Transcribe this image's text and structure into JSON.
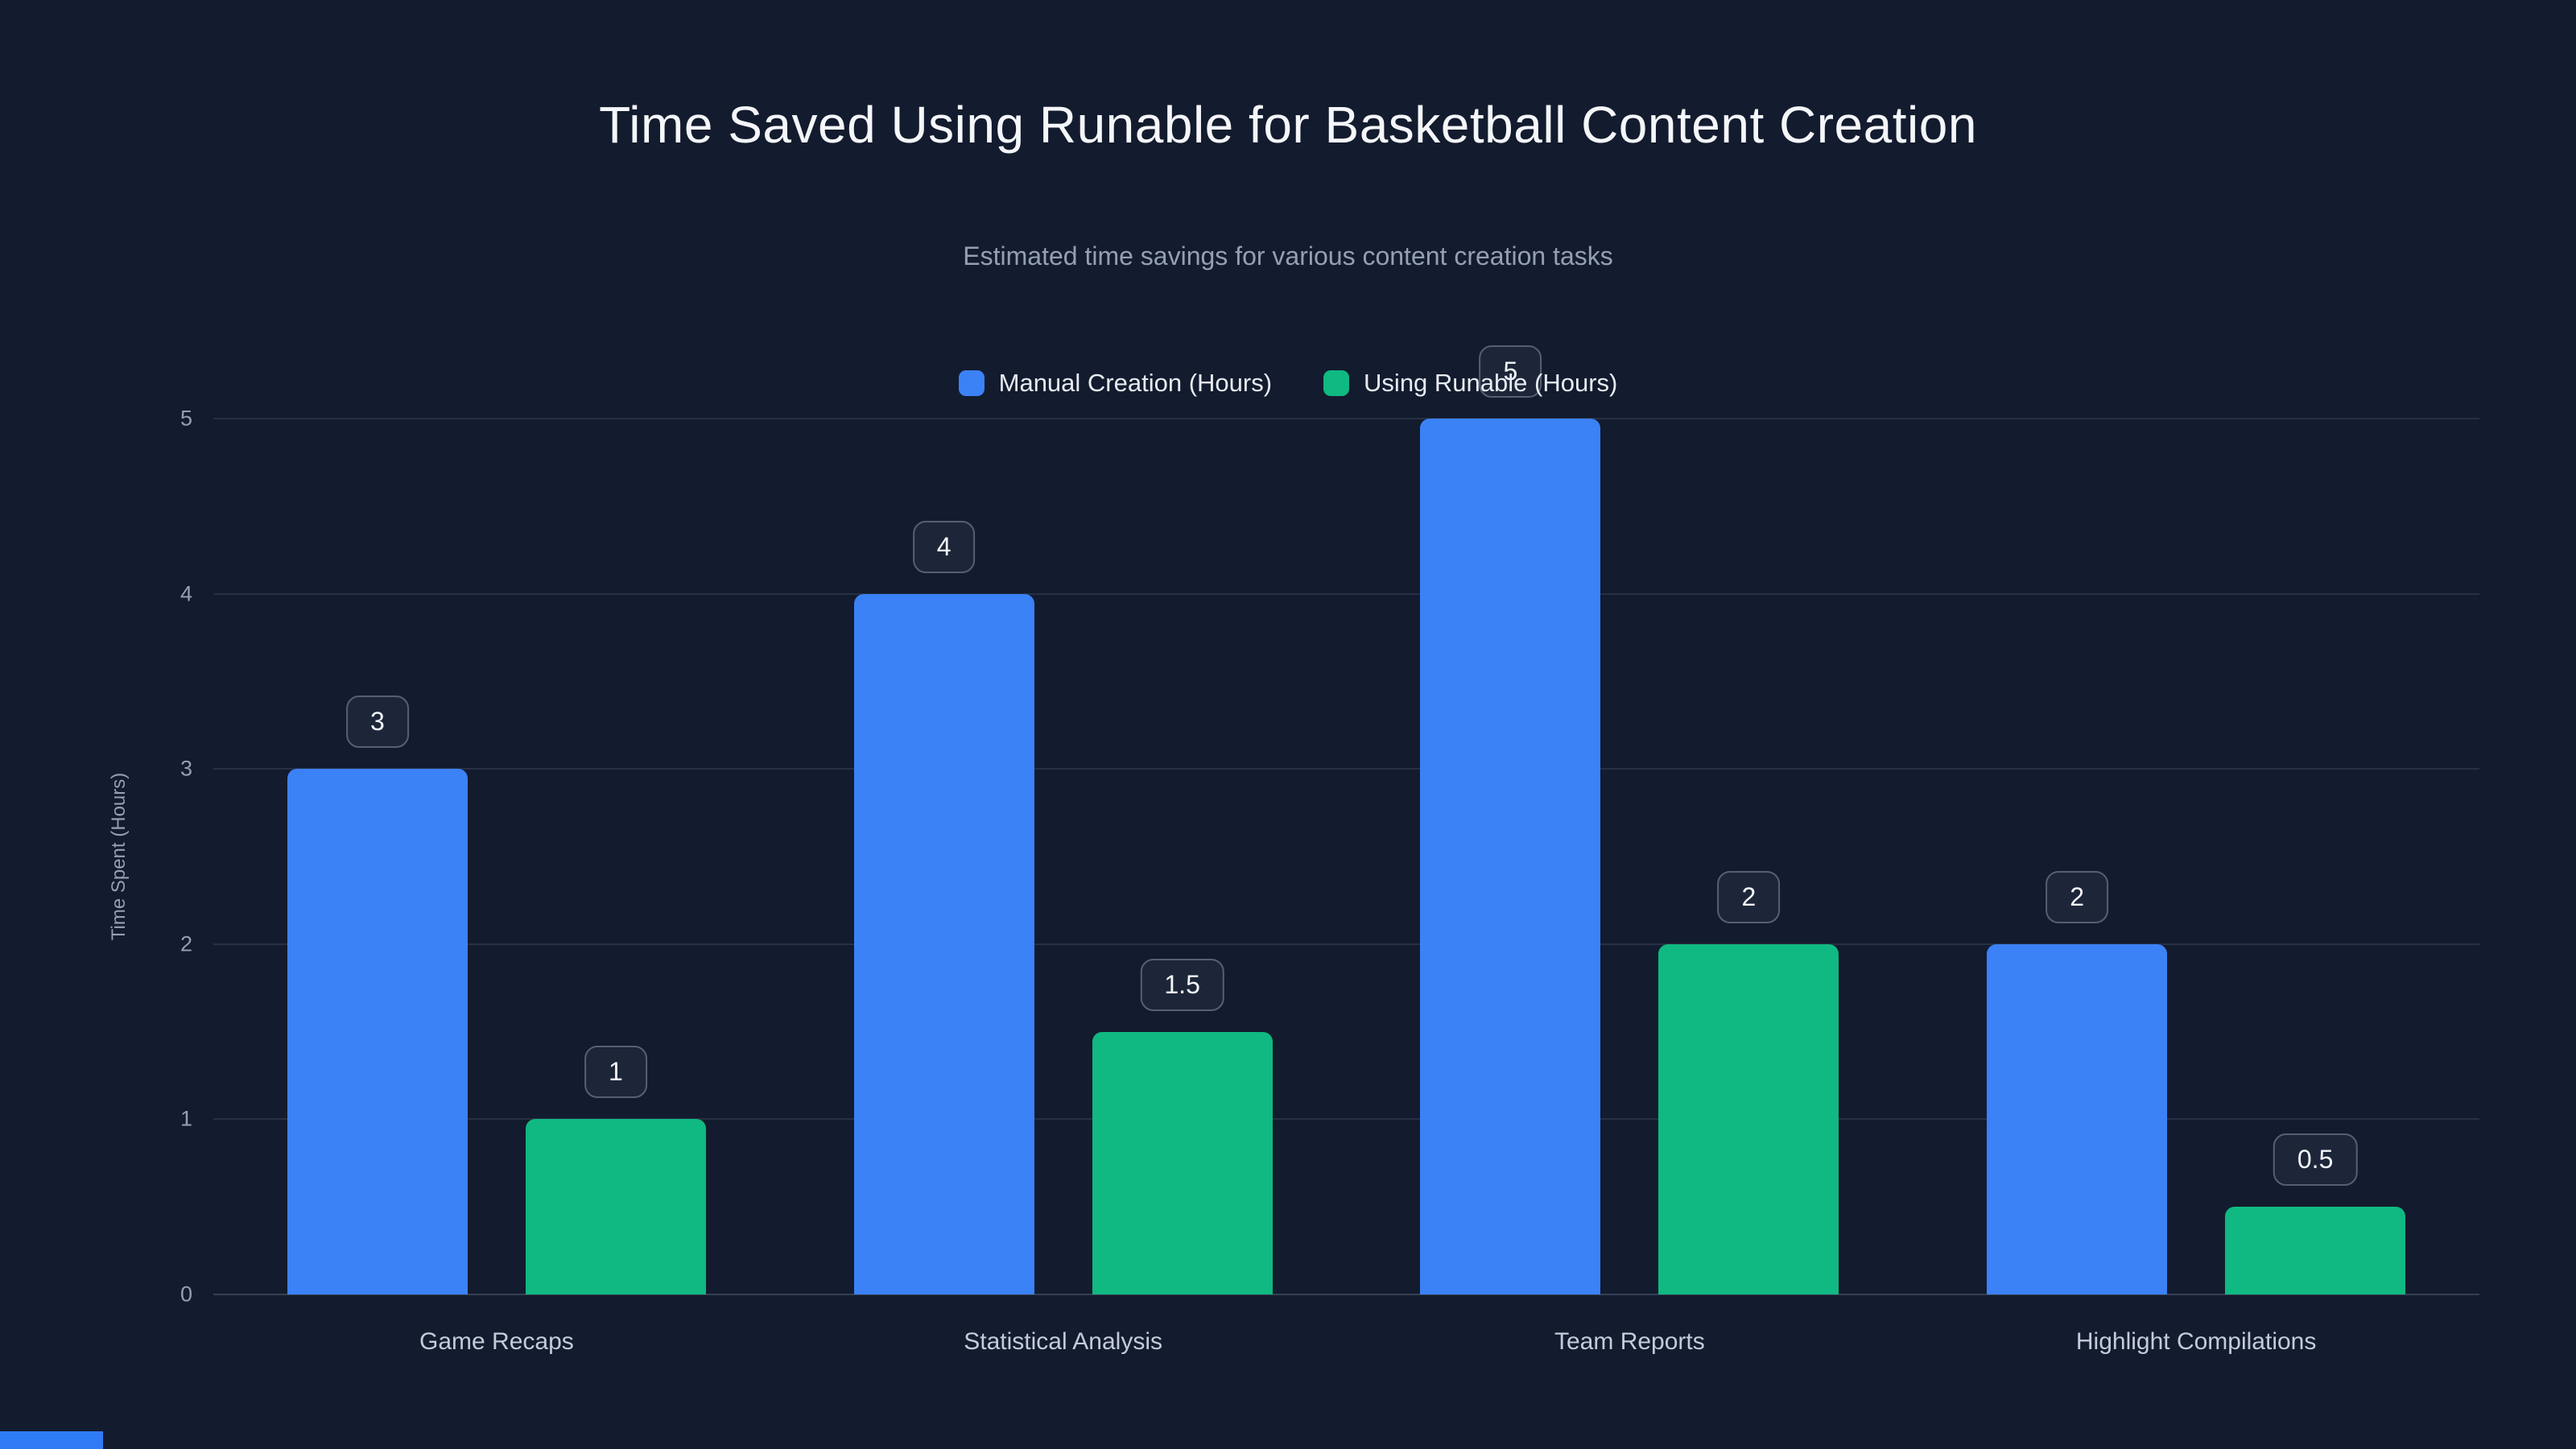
{
  "page": {
    "background_color": "#131b2e",
    "accent_strip_color": "#2f7bf6"
  },
  "header": {
    "title": "Time Saved Using Runable for Basketball Content Creation",
    "subtitle": "Estimated time savings for various content creation tasks"
  },
  "chart_data": {
    "type": "bar",
    "title": "Time Saved Using Runable for Basketball Content Creation",
    "subtitle": "Estimated time savings for various content creation tasks",
    "categories": [
      "Game Recaps",
      "Statistical Analysis",
      "Team Reports",
      "Highlight Compilations"
    ],
    "series": [
      {
        "name": "Manual Creation (Hours)",
        "color": "#3b82f6",
        "values": [
          3,
          4,
          5,
          2
        ]
      },
      {
        "name": "Using Runable (Hours)",
        "color": "#10b981",
        "values": [
          1,
          1.5,
          2,
          0.5
        ]
      }
    ],
    "value_labels": [
      [
        "3",
        "4",
        "5",
        "2"
      ],
      [
        "1",
        "1.5",
        "2",
        "0.5"
      ]
    ],
    "xlabel": "",
    "ylabel": "Time Spent (Hours)",
    "ylim": [
      0,
      5
    ],
    "yticks": [
      0,
      1,
      2,
      3,
      4,
      5
    ],
    "grid": true,
    "legend_position": "top",
    "label_box": {
      "background": "#1d2639",
      "border": "#556072",
      "text_color": "#f4f6f9"
    },
    "gridline_color": "rgba(148,163,184,0.16)",
    "tick_color": "#93a0b4"
  }
}
